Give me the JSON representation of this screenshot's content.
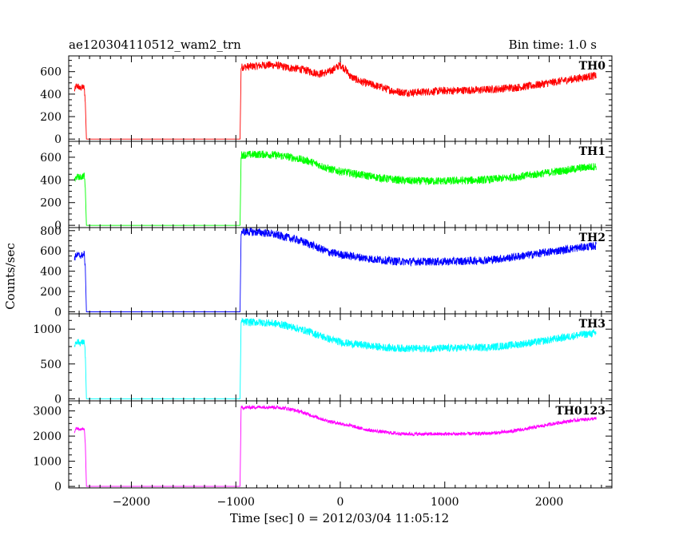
{
  "header": {
    "left": "ae120304110512_wam2_trn",
    "right": "Bin time: 1.0 s"
  },
  "chart_data": {
    "type": "line",
    "title": "ae120304110512_wam2_trn",
    "subtitle": "Bin time: 1.0 s",
    "xlabel": "Time [sec] 0 = 2012/03/04 11:05:12",
    "ylabel": "Counts/sec",
    "xlim": [
      -2600,
      2600
    ],
    "xticks": [
      -2000,
      -1000,
      0,
      1000,
      2000
    ],
    "x_tick_labels": [
      "−2000",
      "−1000",
      "0",
      "1000",
      "2000"
    ],
    "grid": false,
    "panels": [
      {
        "label": "TH0",
        "color": "#ff0000",
        "ylim": [
          -20,
          740
        ],
        "yticks": [
          0,
          200,
          400,
          600
        ],
        "y_tick_labels": [
          "0",
          "200",
          "400",
          "600"
        ],
        "noise": 35,
        "x": [
          -2545,
          -2530,
          -2510,
          -2490,
          -2470,
          -2450,
          -2440,
          -2430,
          -1000,
          -960,
          -950,
          -800,
          -700,
          -600,
          -500,
          -400,
          -300,
          -200,
          -100,
          0,
          50,
          100,
          200,
          300,
          400,
          500,
          600,
          700,
          800,
          900,
          1000,
          1100,
          1200,
          1300,
          1400,
          1500,
          1600,
          1700,
          1800,
          1900,
          2000,
          2100,
          2200,
          2300,
          2400,
          2450
        ],
        "values": [
          430,
          470,
          470,
          450,
          460,
          460,
          300,
          0,
          0,
          0,
          640,
          650,
          660,
          655,
          635,
          625,
          605,
          580,
          600,
          660,
          620,
          555,
          510,
          485,
          460,
          430,
          415,
          415,
          420,
          425,
          430,
          430,
          435,
          435,
          440,
          445,
          455,
          460,
          470,
          485,
          500,
          515,
          530,
          545,
          560,
          565
        ]
      },
      {
        "label": "TH1",
        "color": "#00ff00",
        "ylim": [
          -20,
          740
        ],
        "yticks": [
          0,
          200,
          400,
          600
        ],
        "y_tick_labels": [
          "0",
          "200",
          "400",
          "600"
        ],
        "noise": 35,
        "x": [
          -2545,
          -2530,
          -2510,
          -2490,
          -2470,
          -2450,
          -2440,
          -2430,
          -1000,
          -960,
          -950,
          -800,
          -700,
          -600,
          -500,
          -400,
          -300,
          -200,
          -100,
          0,
          100,
          200,
          300,
          400,
          500,
          600,
          700,
          800,
          900,
          1000,
          1100,
          1200,
          1300,
          1400,
          1500,
          1600,
          1700,
          1800,
          1900,
          2000,
          2100,
          2200,
          2300,
          2400,
          2450
        ],
        "values": [
          390,
          420,
          430,
          420,
          430,
          440,
          300,
          0,
          0,
          0,
          620,
          625,
          625,
          615,
          605,
          585,
          565,
          530,
          495,
          475,
          460,
          445,
          430,
          415,
          405,
          395,
          390,
          390,
          390,
          390,
          392,
          395,
          398,
          402,
          410,
          418,
          428,
          440,
          452,
          465,
          478,
          490,
          505,
          515,
          520
        ]
      },
      {
        "label": "TH2",
        "color": "#0000ff",
        "ylim": [
          -20,
          830
        ],
        "yticks": [
          0,
          200,
          400,
          600,
          800
        ],
        "y_tick_labels": [
          "0",
          "200",
          "400",
          "600",
          "800"
        ],
        "noise": 40,
        "x": [
          -2545,
          -2530,
          -2510,
          -2490,
          -2470,
          -2450,
          -2440,
          -2430,
          -1000,
          -960,
          -950,
          -800,
          -700,
          -600,
          -500,
          -400,
          -300,
          -200,
          -100,
          0,
          100,
          200,
          300,
          400,
          500,
          600,
          700,
          800,
          900,
          1000,
          1100,
          1200,
          1300,
          1400,
          1500,
          1600,
          1700,
          1800,
          1900,
          2000,
          2100,
          2200,
          2300,
          2400,
          2450
        ],
        "values": [
          520,
          560,
          560,
          550,
          560,
          570,
          400,
          0,
          0,
          0,
          790,
          785,
          775,
          755,
          730,
          705,
          670,
          625,
          585,
          565,
          550,
          535,
          520,
          510,
          500,
          495,
          495,
          495,
          495,
          495,
          498,
          500,
          505,
          510,
          520,
          530,
          545,
          560,
          575,
          590,
          605,
          620,
          635,
          645,
          650
        ]
      },
      {
        "label": "TH3",
        "color": "#00ffff",
        "ylim": [
          -30,
          1220
        ],
        "yticks": [
          0,
          500,
          1000
        ],
        "y_tick_labels": [
          "0",
          "500",
          "1000"
        ],
        "noise": 55,
        "x": [
          -2545,
          -2530,
          -2510,
          -2490,
          -2470,
          -2450,
          -2440,
          -2430,
          -1000,
          -960,
          -950,
          -800,
          -700,
          -600,
          -500,
          -400,
          -300,
          -200,
          -100,
          0,
          100,
          200,
          300,
          400,
          500,
          600,
          700,
          800,
          900,
          1000,
          1100,
          1200,
          1300,
          1400,
          1500,
          1600,
          1700,
          1800,
          1900,
          2000,
          2100,
          2200,
          2300,
          2400,
          2450
        ],
        "values": [
          760,
          820,
          820,
          800,
          810,
          820,
          600,
          0,
          0,
          0,
          1100,
          1100,
          1090,
          1075,
          1045,
          1005,
          965,
          910,
          855,
          815,
          790,
          775,
          755,
          740,
          730,
          725,
          722,
          722,
          722,
          725,
          728,
          732,
          735,
          740,
          750,
          765,
          780,
          800,
          820,
          845,
          870,
          895,
          920,
          935,
          945
        ]
      },
      {
        "label": "TH0123",
        "color": "#ff00ff",
        "ylim": [
          -60,
          3400
        ],
        "yticks": [
          0,
          1000,
          2000,
          3000
        ],
        "y_tick_labels": [
          "0",
          "1000",
          "2000",
          "3000"
        ],
        "noise": 70,
        "x": [
          -2545,
          -2530,
          -2510,
          -2490,
          -2470,
          -2450,
          -2440,
          -2430,
          -1000,
          -960,
          -950,
          -800,
          -700,
          -600,
          -500,
          -400,
          -300,
          -200,
          -100,
          0,
          100,
          200,
          300,
          400,
          500,
          600,
          700,
          800,
          900,
          1000,
          1100,
          1200,
          1300,
          1400,
          1500,
          1600,
          1700,
          1800,
          1900,
          2000,
          2100,
          2200,
          2300,
          2400,
          2450
        ],
        "values": [
          2150,
          2300,
          2300,
          2250,
          2270,
          2280,
          1600,
          0,
          0,
          0,
          3130,
          3150,
          3160,
          3140,
          3090,
          2990,
          2860,
          2710,
          2580,
          2500,
          2410,
          2300,
          2220,
          2170,
          2120,
          2090,
          2080,
          2080,
          2080,
          2080,
          2085,
          2090,
          2095,
          2105,
          2130,
          2170,
          2230,
          2300,
          2380,
          2460,
          2540,
          2600,
          2650,
          2680,
          2700
        ]
      }
    ]
  }
}
